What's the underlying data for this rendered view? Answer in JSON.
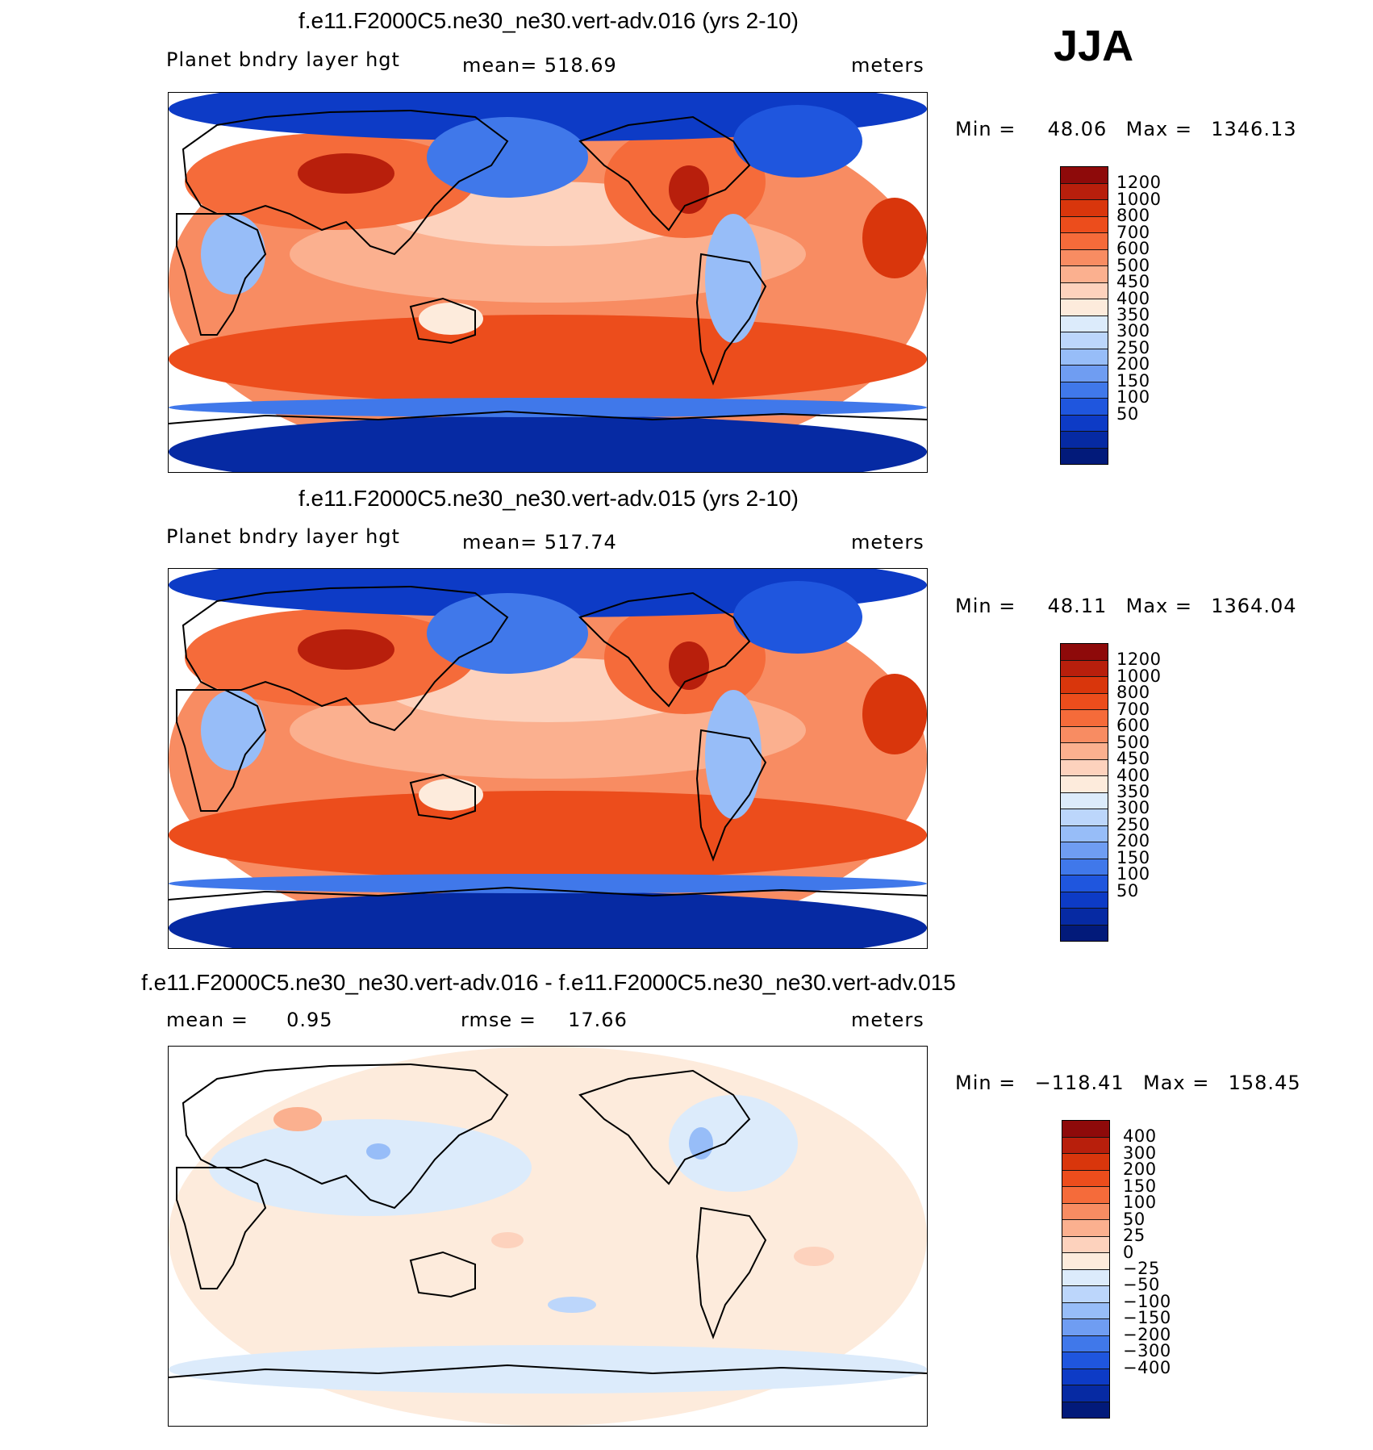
{
  "season": "JJA",
  "panels": [
    {
      "title": "f.e11.F2000C5.ne30_ne30.vert-adv.016 (yrs 2-10)",
      "left_label": "Planet bndry layer hgt",
      "center_label": "mean= 518.69",
      "units": "meters",
      "min_label": "Min =",
      "min_value": "48.06",
      "max_label": "Max =",
      "max_value": "1346.13",
      "scheme": "abs"
    },
    {
      "title": "f.e11.F2000C5.ne30_ne30.vert-adv.015 (yrs 2-10)",
      "left_label": "Planet bndry layer hgt",
      "center_label": "mean= 517.74",
      "units": "meters",
      "min_label": "Min =",
      "min_value": "48.11",
      "max_label": "Max =",
      "max_value": "1364.04",
      "scheme": "abs"
    },
    {
      "title": "f.e11.F2000C5.ne30_ne30.vert-adv.016 - f.e11.F2000C5.ne30_ne30.vert-adv.015",
      "left_label": "mean =",
      "left_value": "0.95",
      "center_label": "rmse =",
      "center_value": "17.66",
      "units": "meters",
      "min_label": "Min =",
      "min_value": "−118.41",
      "max_label": "Max =",
      "max_value": "158.45",
      "scheme": "diff"
    }
  ],
  "chart_data": [
    {
      "type": "heatmap",
      "title": "f.e11.F2000C5.ne30_ne30.vert-adv.016 (yrs 2-10)",
      "variable": "Planet bndry layer hgt",
      "units": "meters",
      "mean": 518.69,
      "min": 48.06,
      "max": 1346.13,
      "colorbar_levels": [
        "1200",
        "1000",
        "800",
        "700",
        "600",
        "500",
        "450",
        "400",
        "350",
        "300",
        "250",
        "200",
        "150",
        "100",
        "50"
      ]
    },
    {
      "type": "heatmap",
      "title": "f.e11.F2000C5.ne30_ne30.vert-adv.015 (yrs 2-10)",
      "variable": "Planet bndry layer hgt",
      "units": "meters",
      "mean": 517.74,
      "min": 48.11,
      "max": 1364.04,
      "colorbar_levels": [
        "1200",
        "1000",
        "800",
        "700",
        "600",
        "500",
        "450",
        "400",
        "350",
        "300",
        "250",
        "200",
        "150",
        "100",
        "50"
      ]
    },
    {
      "type": "heatmap",
      "title": "f.e11.F2000C5.ne30_ne30.vert-adv.016 - f.e11.F2000C5.ne30_ne30.vert-adv.015",
      "units": "meters",
      "mean": 0.95,
      "rmse": 17.66,
      "min": -118.41,
      "max": 158.45,
      "colorbar_levels": [
        "400",
        "300",
        "200",
        "150",
        "100",
        "50",
        "25",
        "0",
        "−25",
        "−50",
        "−100",
        "−150",
        "−200",
        "−300",
        "−400"
      ]
    }
  ],
  "colors": {
    "abs_palette": [
      "#8e0a0a",
      "#b81f0c",
      "#d9360c",
      "#ec4d1c",
      "#f56b3a",
      "#f88c62",
      "#fbb08f",
      "#fdd2bd",
      "#fdebdc",
      "#dcebfb",
      "#bcd6fb",
      "#97bdf8",
      "#6f9df2",
      "#4078ea",
      "#1f56de",
      "#0d3bc6",
      "#062aa3",
      "#021a7a"
    ],
    "diff_palette": [
      "#8e0a0a",
      "#b81f0c",
      "#d9360c",
      "#ec4d1c",
      "#f56b3a",
      "#f88c62",
      "#fbb08f",
      "#fdd2bd",
      "#fdebdc",
      "#dcebfb",
      "#bcd6fb",
      "#97bdf8",
      "#6f9df2",
      "#4078ea",
      "#1f56de",
      "#0d3bc6",
      "#062aa3",
      "#021a7a"
    ]
  }
}
